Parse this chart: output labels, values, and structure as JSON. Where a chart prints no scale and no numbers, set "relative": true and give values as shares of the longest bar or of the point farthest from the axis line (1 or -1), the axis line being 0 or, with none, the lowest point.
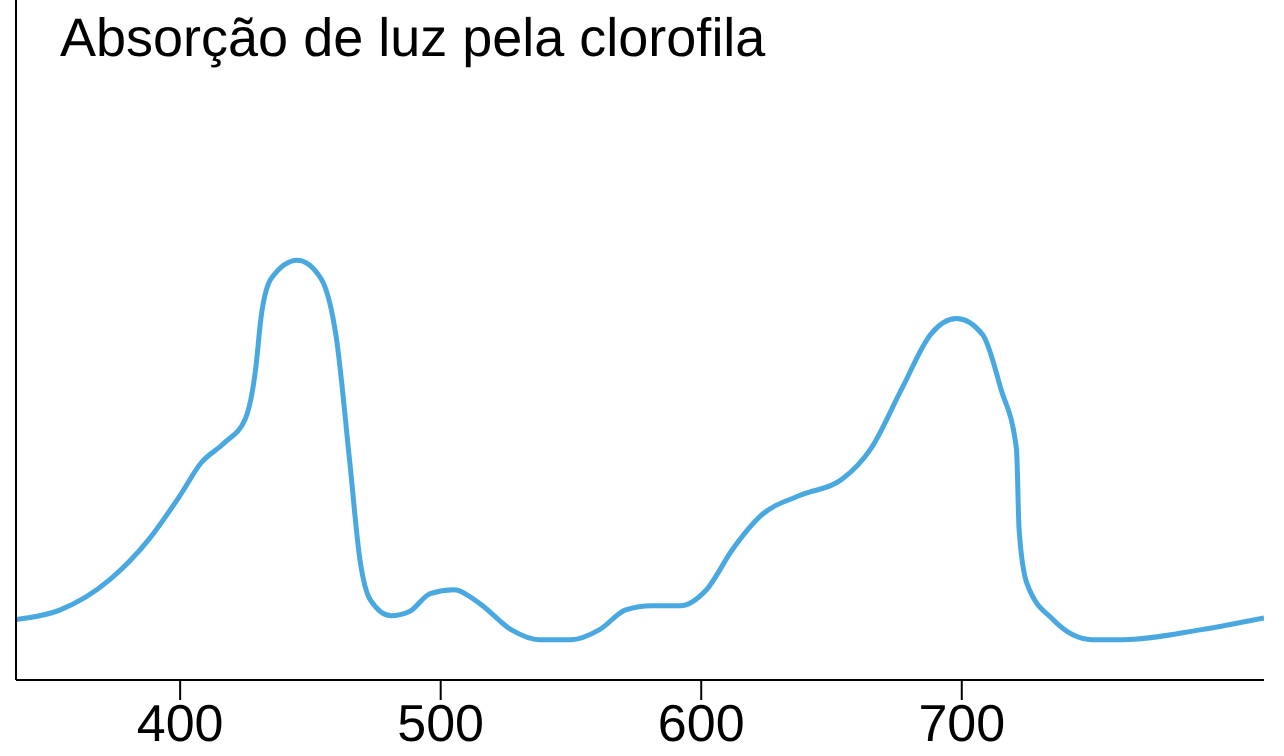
{
  "chart_data": {
    "type": "line",
    "title": "Absorção de luz pela clorofila",
    "relative": true,
    "xlim": [
      337,
      816
    ],
    "xticks": [
      400,
      500,
      600,
      700
    ],
    "x": [
      337,
      354,
      373,
      388,
      400,
      408,
      417,
      425,
      429,
      431,
      435,
      445,
      454,
      460,
      465,
      469,
      473,
      481,
      488,
      496,
      505,
      515,
      527,
      538,
      550,
      561,
      571,
      581,
      592,
      602,
      612,
      623,
      638,
      654,
      665,
      677,
      688,
      698,
      708,
      715,
      721,
      722,
      725,
      735,
      750,
      762,
      792,
      816
    ],
    "series": [
      {
        "color": "#4aa8e0",
        "values": [
          0.144,
          0.167,
          0.239,
          0.335,
          0.44,
          0.517,
          0.565,
          0.622,
          0.742,
          0.861,
          0.957,
          1.0,
          0.957,
          0.813,
          0.526,
          0.287,
          0.191,
          0.153,
          0.163,
          0.206,
          0.215,
          0.182,
          0.12,
          0.096,
          0.096,
          0.12,
          0.167,
          0.177,
          0.177,
          0.215,
          0.311,
          0.392,
          0.44,
          0.478,
          0.55,
          0.694,
          0.823,
          0.861,
          0.823,
          0.694,
          0.55,
          0.359,
          0.23,
          0.144,
          0.096,
          0.096,
          0.12,
          0.148
        ]
      }
    ],
    "grid": false,
    "marker": "none",
    "line_style": "solid"
  }
}
